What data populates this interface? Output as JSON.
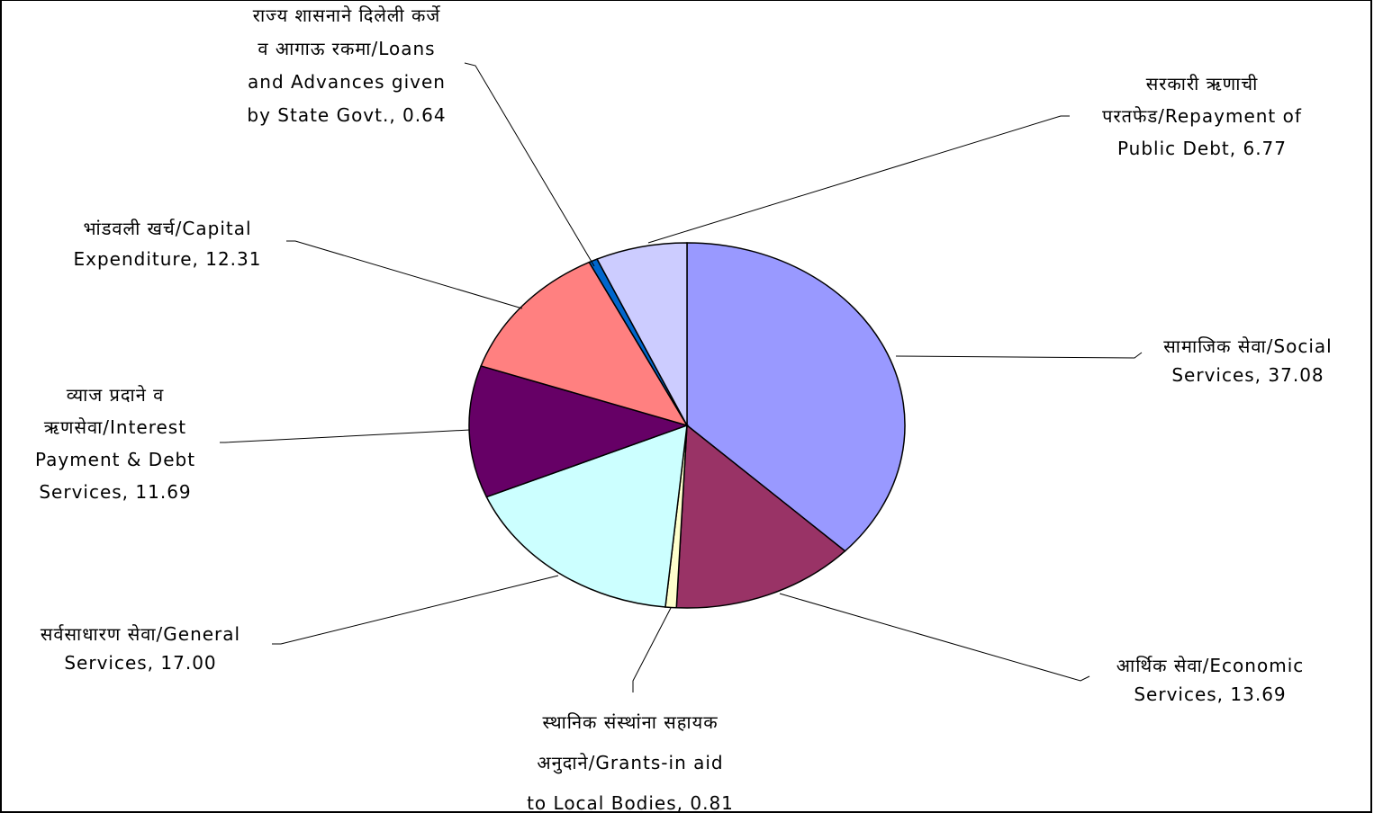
{
  "chart_data": {
    "type": "pie",
    "title": "",
    "slices": [
      {
        "label_lines": [
          "सामाजिक सेवा/Social",
          "Services, 37.08"
        ],
        "name": "सामाजिक सेवा/Social Services",
        "value": 37.08,
        "color": "#9999ff"
      },
      {
        "label_lines": [
          "आर्थिक सेवा/Economic",
          "Services, 13.69"
        ],
        "name": "आर्थिक सेवा/Economic Services",
        "value": 13.69,
        "color": "#993366"
      },
      {
        "label_lines": [
          "स्थानिक संस्थांना सहायक",
          "अनुदाने/Grants-in aid",
          "to Local Bodies, 0.81"
        ],
        "name": "स्थानिक संस्थांना सहायक अनुदाने/Grants-in aid to Local Bodies",
        "value": 0.81,
        "color": "#ffffcc"
      },
      {
        "label_lines": [
          "सर्वसाधारण सेवा/General",
          "Services, 17.00"
        ],
        "name": "सर्वसाधारण सेवा/General Services",
        "value": 17.0,
        "color": "#ccffff"
      },
      {
        "label_lines": [
          "व्याज प्रदाने व",
          "ऋणसेवा/Interest",
          "Payment & Debt",
          "Services, 11.69"
        ],
        "name": "व्याज प्रदाने व ऋणसेवा/Interest Payment & Debt Services",
        "value": 11.69,
        "color": "#660066"
      },
      {
        "label_lines": [
          "भांडवली खर्च/Capital",
          "Expenditure, 12.31"
        ],
        "name": "भांडवली खर्च/Capital Expenditure",
        "value": 12.31,
        "color": "#ff8080"
      },
      {
        "label_lines": [
          "राज्य शासनाने दिलेली कर्जे",
          "व आगाऊ रकमा/Loans",
          "and Advances given",
          "by State Govt., 0.64"
        ],
        "name": "राज्य शासनाने दिलेली कर्जे व आगाऊ रकमा/Loans and Advances given by State Govt.",
        "value": 0.64,
        "color": "#0066cc"
      },
      {
        "label_lines": [
          "सरकारी ऋणाची",
          "परतफेड/Repayment of",
          "Public Debt, 6.77"
        ],
        "name": "सरकारी ऋणाची परतफेड/Repayment of Public Debt",
        "value": 6.77,
        "color": "#ccccff"
      }
    ],
    "legend": "none",
    "labels": "outside-with-leader-lines"
  }
}
